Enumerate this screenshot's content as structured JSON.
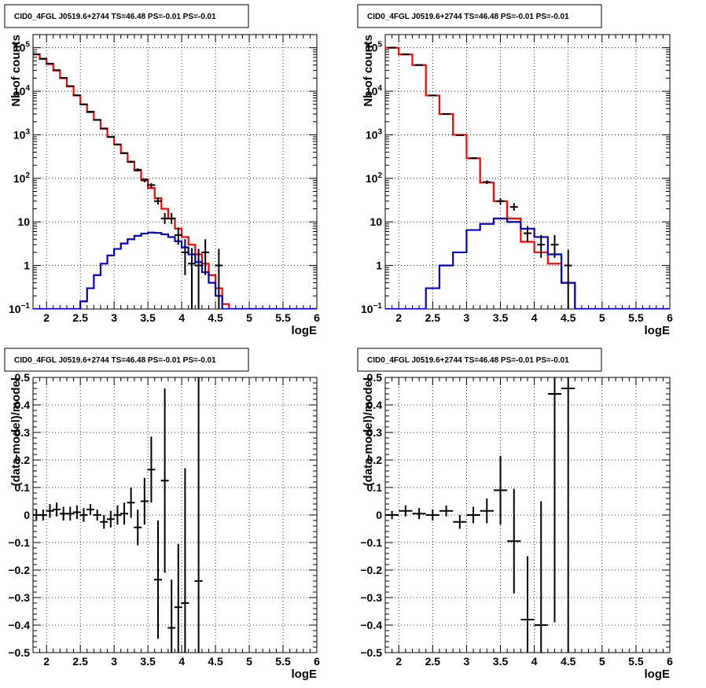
{
  "colors": {
    "data": "#000000",
    "total_model": "#ff0000",
    "source_model": "#0000cc"
  },
  "chart_data": [
    {
      "type": "line",
      "title": "CID0_4FGL J0519.6+2744 TS=46.48 PS=-0.01 PS=-0.01",
      "xlabel": "logE",
      "ylabel": "Nb of counts",
      "xlim": [
        1.8,
        6
      ],
      "ylim": [
        0.1,
        200000
      ],
      "yscale": "log",
      "grid": true,
      "x_ticks": [
        "2",
        "2.5",
        "3",
        "3.5",
        "4",
        "4.5",
        "5",
        "5.5",
        "6"
      ],
      "y_ticks": [
        {
          "v": 0.1,
          "label": "10",
          "sup": "−1"
        },
        {
          "v": 1,
          "label": "1",
          "sup": ""
        },
        {
          "v": 10,
          "label": "10",
          "sup": ""
        },
        {
          "v": 100,
          "label": "10",
          "sup": "2"
        },
        {
          "v": 1000,
          "label": "10",
          "sup": "3"
        },
        {
          "v": 10000,
          "label": "10",
          "sup": "4"
        },
        {
          "v": 100000,
          "label": "10",
          "sup": "5"
        }
      ],
      "bin_edges": [
        1.8,
        1.9,
        2.0,
        2.1,
        2.2,
        2.3,
        2.4,
        2.5,
        2.6,
        2.7,
        2.8,
        2.9,
        3.0,
        3.1,
        3.2,
        3.3,
        3.4,
        3.5,
        3.6,
        3.7,
        3.8,
        3.9,
        4.0,
        4.1,
        4.2,
        4.3,
        4.4,
        4.5,
        4.6,
        4.7,
        4.8,
        4.9,
        5.0,
        5.1,
        5.2,
        5.3,
        5.4,
        5.5,
        5.6,
        5.7,
        5.8,
        5.9,
        6.0
      ],
      "series": [
        {
          "name": "",
          "role": "total_model",
          "values": [
            70000,
            55000,
            42000,
            30000,
            20000,
            13000,
            8000,
            5000,
            3300,
            2200,
            1400,
            900,
            600,
            380,
            240,
            150,
            95,
            60,
            35,
            20,
            12,
            7,
            4.5,
            3,
            1.8,
            1.1,
            0.6,
            0.3,
            0.13,
            0.1,
            0.1,
            0.1,
            0.1,
            0.1,
            0.1,
            0.1,
            0.1,
            0.1,
            0.1,
            0.1,
            0.1,
            0.1
          ]
        },
        {
          "name": "",
          "role": "source_model",
          "values": [
            0.1,
            0.1,
            0.1,
            0.1,
            0.1,
            0.1,
            0.1,
            0.15,
            0.3,
            0.6,
            1.1,
            1.7,
            2.4,
            3.2,
            4.0,
            4.8,
            5.4,
            5.7,
            5.6,
            5.2,
            4.5,
            3.6,
            2.6,
            1.8,
            1.2,
            0.7,
            0.4,
            0.2,
            0.1,
            0.1,
            0.1,
            0.1,
            0.1,
            0.1,
            0.1,
            0.1,
            0.1,
            0.1,
            0.1,
            0.1,
            0.1,
            0.1
          ]
        }
      ],
      "points": [
        {
          "x": 1.85,
          "y": 71000,
          "lo": 70400,
          "hi": 71600
        },
        {
          "x": 1.95,
          "y": 56000,
          "lo": 55500,
          "hi": 56500
        },
        {
          "x": 2.05,
          "y": 43000,
          "lo": 42500,
          "hi": 43500
        },
        {
          "x": 2.15,
          "y": 30500,
          "lo": 30100,
          "hi": 30900
        },
        {
          "x": 2.25,
          "y": 20200,
          "lo": 19900,
          "hi": 20500
        },
        {
          "x": 2.35,
          "y": 13100,
          "lo": 12900,
          "hi": 13300
        },
        {
          "x": 2.45,
          "y": 8100,
          "lo": 7950,
          "hi": 8250
        },
        {
          "x": 2.55,
          "y": 5000,
          "lo": 4900,
          "hi": 5100
        },
        {
          "x": 2.65,
          "y": 3400,
          "lo": 3330,
          "hi": 3470
        },
        {
          "x": 2.75,
          "y": 2200,
          "lo": 2150,
          "hi": 2250
        },
        {
          "x": 2.85,
          "y": 1380,
          "lo": 1340,
          "hi": 1420
        },
        {
          "x": 2.95,
          "y": 890,
          "lo": 860,
          "hi": 920
        },
        {
          "x": 3.05,
          "y": 600,
          "lo": 575,
          "hi": 625
        },
        {
          "x": 3.15,
          "y": 380,
          "lo": 360,
          "hi": 400
        },
        {
          "x": 3.25,
          "y": 240,
          "lo": 225,
          "hi": 255
        },
        {
          "x": 3.35,
          "y": 158,
          "lo": 146,
          "hi": 170
        },
        {
          "x": 3.45,
          "y": 90,
          "lo": 81,
          "hi": 99
        },
        {
          "x": 3.55,
          "y": 70,
          "lo": 62,
          "hi": 78
        },
        {
          "x": 3.65,
          "y": 30,
          "lo": 25,
          "hi": 36
        },
        {
          "x": 3.75,
          "y": 12,
          "lo": 9,
          "hi": 16
        },
        {
          "x": 3.85,
          "y": 12,
          "lo": 9,
          "hi": 16
        },
        {
          "x": 3.95,
          "y": 5,
          "lo": 3,
          "hi": 7.5
        },
        {
          "x": 4.05,
          "y": 2,
          "lo": 0.6,
          "hi": 4
        },
        {
          "x": 4.15,
          "y": 1.1,
          "lo": 0.1,
          "hi": 2.5
        },
        {
          "x": 4.25,
          "y": 1,
          "lo": 0.1,
          "hi": 2.4
        },
        {
          "x": 4.35,
          "y": 2,
          "lo": 0.6,
          "hi": 4
        },
        {
          "x": 4.55,
          "y": 1,
          "lo": 0.1,
          "hi": 2.4
        }
      ]
    },
    {
      "type": "line",
      "title": "CID0_4FGL J0519.6+2744 TS=46.48 PS=-0.01 PS=-0.01",
      "xlabel": "logE",
      "ylabel": "Nb of counts",
      "xlim": [
        1.8,
        6
      ],
      "ylim": [
        0.1,
        200000
      ],
      "yscale": "log",
      "grid": true,
      "x_ticks": [
        "2",
        "2.5",
        "3",
        "3.5",
        "4",
        "4.5",
        "5",
        "5.5",
        "6"
      ],
      "y_ticks": [
        {
          "v": 0.1,
          "label": "10",
          "sup": "−1"
        },
        {
          "v": 1,
          "label": "1",
          "sup": ""
        },
        {
          "v": 10,
          "label": "10",
          "sup": ""
        },
        {
          "v": 100,
          "label": "10",
          "sup": "2"
        },
        {
          "v": 1000,
          "label": "10",
          "sup": "3"
        },
        {
          "v": 10000,
          "label": "10",
          "sup": "4"
        },
        {
          "v": 100000,
          "label": "10",
          "sup": "5"
        }
      ],
      "bin_edges": [
        1.8,
        2.0,
        2.2,
        2.4,
        2.6,
        2.8,
        3.0,
        3.2,
        3.4,
        3.6,
        3.8,
        4.0,
        4.2,
        4.4,
        4.6,
        4.8,
        5.0,
        5.2,
        5.4,
        5.6,
        5.8,
        6.0
      ],
      "series": [
        {
          "name": "",
          "role": "total_model",
          "values": [
            100000,
            70000,
            40000,
            8000,
            3000,
            1000,
            290,
            80,
            30,
            12,
            3.5,
            2,
            1.1,
            0.4,
            0.1,
            0.1,
            0.1,
            0.1,
            0.1,
            0.1,
            0.1
          ]
        },
        {
          "name": "",
          "role": "source_model",
          "values": [
            0.1,
            0.1,
            0.1,
            0.3,
            1.0,
            2.0,
            6.5,
            9,
            12,
            10,
            7,
            4.5,
            1.8,
            0.4,
            0.1,
            0.1,
            0.1,
            0.1,
            0.1,
            0.1,
            0.1
          ]
        }
      ],
      "points": [
        {
          "x": 1.9,
          "y": 100000,
          "lo": 99500,
          "hi": 100500
        },
        {
          "x": 2.1,
          "y": 70500,
          "lo": 70000,
          "hi": 71000
        },
        {
          "x": 2.3,
          "y": 40000,
          "lo": 39600,
          "hi": 40400
        },
        {
          "x": 2.5,
          "y": 8000,
          "lo": 7900,
          "hi": 8100
        },
        {
          "x": 2.7,
          "y": 3000,
          "lo": 2950,
          "hi": 3050
        },
        {
          "x": 2.9,
          "y": 980,
          "lo": 950,
          "hi": 1010
        },
        {
          "x": 3.1,
          "y": 290,
          "lo": 275,
          "hi": 305
        },
        {
          "x": 3.3,
          "y": 82,
          "lo": 74,
          "hi": 90
        },
        {
          "x": 3.5,
          "y": 30,
          "lo": 25,
          "hi": 35
        },
        {
          "x": 3.7,
          "y": 22,
          "lo": 18,
          "hi": 27
        },
        {
          "x": 3.9,
          "y": 5.5,
          "lo": 3.5,
          "hi": 8
        },
        {
          "x": 4.1,
          "y": 3,
          "lo": 1.5,
          "hi": 5
        },
        {
          "x": 4.3,
          "y": 3,
          "lo": 1.5,
          "hi": 5
        },
        {
          "x": 4.5,
          "y": 1,
          "lo": 0.1,
          "hi": 2.3
        }
      ]
    },
    {
      "type": "scatter",
      "title": "CID0_4FGL J0519.6+2744 TS=46.48 PS=-0.01 PS=-0.01",
      "xlabel": "logE",
      "ylabel": "(data-model)/model",
      "xlim": [
        1.8,
        6
      ],
      "ylim": [
        -0.5,
        0.5
      ],
      "grid": true,
      "x_ticks": [
        "2",
        "2.5",
        "3",
        "3.5",
        "4",
        "4.5",
        "5",
        "5.5",
        "6"
      ],
      "y_ticks": [
        {
          "v": -0.5,
          "label": "−0.5"
        },
        {
          "v": -0.4,
          "label": "−0.4"
        },
        {
          "v": -0.3,
          "label": "−0.3"
        },
        {
          "v": -0.2,
          "label": "−0.2"
        },
        {
          "v": -0.1,
          "label": "−0.1"
        },
        {
          "v": 0,
          "label": "0"
        },
        {
          "v": 0.1,
          "label": "0.1"
        },
        {
          "v": 0.2,
          "label": "0.2"
        },
        {
          "v": 0.3,
          "label": "0.3"
        },
        {
          "v": 0.4,
          "label": "0.4"
        },
        {
          "v": 0.5,
          "label": "0.5"
        }
      ],
      "xerr": 0.05,
      "points": [
        {
          "x": 1.85,
          "y": 0.0,
          "err": 0.02
        },
        {
          "x": 1.95,
          "y": 0.0,
          "err": 0.02
        },
        {
          "x": 2.05,
          "y": 0.015,
          "err": 0.025
        },
        {
          "x": 2.15,
          "y": 0.02,
          "err": 0.025
        },
        {
          "x": 2.25,
          "y": 0.005,
          "err": 0.025
        },
        {
          "x": 2.35,
          "y": 0.005,
          "err": 0.025
        },
        {
          "x": 2.45,
          "y": 0.01,
          "err": 0.025
        },
        {
          "x": 2.55,
          "y": 0.0,
          "err": 0.025
        },
        {
          "x": 2.65,
          "y": 0.02,
          "err": 0.02
        },
        {
          "x": 2.75,
          "y": 0.0,
          "err": 0.02
        },
        {
          "x": 2.85,
          "y": -0.025,
          "err": 0.025
        },
        {
          "x": 2.95,
          "y": -0.015,
          "err": 0.03
        },
        {
          "x": 3.05,
          "y": 0.0,
          "err": 0.035
        },
        {
          "x": 3.15,
          "y": 0.005,
          "err": 0.04
        },
        {
          "x": 3.25,
          "y": 0.045,
          "err": 0.055
        },
        {
          "x": 3.35,
          "y": -0.045,
          "err": 0.065
        },
        {
          "x": 3.45,
          "y": 0.05,
          "err": 0.085
        },
        {
          "x": 3.55,
          "y": 0.165,
          "err": 0.12
        },
        {
          "x": 3.65,
          "y": -0.235,
          "err": 0.215
        },
        {
          "x": 3.75,
          "y": 0.125,
          "err": 0.335
        },
        {
          "x": 3.85,
          "y": -0.41,
          "err": 0.175
        },
        {
          "x": 3.95,
          "y": -0.335,
          "err": 0.23
        },
        {
          "x": 4.05,
          "y": -0.32,
          "err": 0.49
        },
        {
          "x": 4.25,
          "y": -0.24,
          "err": 0.9
        }
      ]
    },
    {
      "type": "scatter",
      "title": "CID0_4FGL J0519.6+2744 TS=46.48 PS=-0.01 PS=-0.01",
      "xlabel": "logE",
      "ylabel": "(data-model)/model",
      "xlim": [
        1.8,
        6
      ],
      "ylim": [
        -0.5,
        0.5
      ],
      "grid": true,
      "x_ticks": [
        "2",
        "2.5",
        "3",
        "3.5",
        "4",
        "4.5",
        "5",
        "5.5",
        "6"
      ],
      "y_ticks": [
        {
          "v": -0.5,
          "label": "−0.5"
        },
        {
          "v": -0.4,
          "label": "−0.4"
        },
        {
          "v": -0.3,
          "label": "−0.3"
        },
        {
          "v": -0.2,
          "label": "−0.2"
        },
        {
          "v": -0.1,
          "label": "−0.1"
        },
        {
          "v": 0,
          "label": "0"
        },
        {
          "v": 0.1,
          "label": "0.1"
        },
        {
          "v": 0.2,
          "label": "0.2"
        },
        {
          "v": 0.3,
          "label": "0.3"
        },
        {
          "v": 0.4,
          "label": "0.4"
        },
        {
          "v": 0.5,
          "label": "0.5"
        }
      ],
      "xerr": 0.1,
      "points": [
        {
          "x": 1.9,
          "y": 0.0,
          "err": 0.015
        },
        {
          "x": 2.1,
          "y": 0.015,
          "err": 0.02
        },
        {
          "x": 2.3,
          "y": 0.005,
          "err": 0.02
        },
        {
          "x": 2.5,
          "y": 0.0,
          "err": 0.02
        },
        {
          "x": 2.7,
          "y": 0.015,
          "err": 0.02
        },
        {
          "x": 2.9,
          "y": -0.025,
          "err": 0.025
        },
        {
          "x": 3.1,
          "y": 0.0,
          "err": 0.03
        },
        {
          "x": 3.3,
          "y": 0.015,
          "err": 0.045
        },
        {
          "x": 3.5,
          "y": 0.09,
          "err": 0.125
        },
        {
          "x": 3.7,
          "y": -0.095,
          "err": 0.19
        },
        {
          "x": 3.9,
          "y": -0.38,
          "err": 0.23
        },
        {
          "x": 4.1,
          "y": -0.4,
          "err": 0.45
        },
        {
          "x": 4.3,
          "y": 0.44,
          "err": 0.83
        },
        {
          "x": 4.5,
          "y": 0.46,
          "err": 0.96
        }
      ]
    }
  ]
}
